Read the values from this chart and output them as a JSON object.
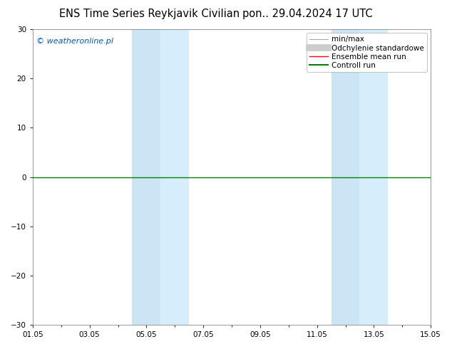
{
  "title_left": "ENS Time Series Reykjavik Civilian",
  "title_right": "pon.. 29.04.2024 17 UTC",
  "watermark": "© weatheronline.pl",
  "ylim": [
    -30,
    30
  ],
  "yticks": [
    -30,
    -20,
    -10,
    0,
    10,
    20,
    30
  ],
  "xtick_labels": [
    "01.05",
    "03.05",
    "05.05",
    "07.05",
    "09.05",
    "11.05",
    "13.05",
    "15.05"
  ],
  "xtick_positions": [
    0,
    2,
    4,
    6,
    8,
    10,
    12,
    14
  ],
  "shaded_bands": [
    {
      "xstart": 3.5,
      "xend": 4.5,
      "color": "#cce5f5"
    },
    {
      "xstart": 4.5,
      "xend": 5.5,
      "color": "#d6edfb"
    },
    {
      "xstart": 10.5,
      "xend": 11.5,
      "color": "#cce5f5"
    },
    {
      "xstart": 11.5,
      "xend": 12.5,
      "color": "#d6edfb"
    }
  ],
  "legend_items": [
    {
      "label": "min/max",
      "color": "#aaaaaa",
      "lw": 1.0,
      "linestyle": "-"
    },
    {
      "label": "Odchylenie standardowe",
      "color": "#cccccc",
      "lw": 5,
      "linestyle": "-"
    },
    {
      "label": "Ensemble mean run",
      "color": "#ff0000",
      "lw": 1.0,
      "linestyle": "-"
    },
    {
      "label": "Controll run",
      "color": "#008000",
      "lw": 1.5,
      "linestyle": "-"
    }
  ],
  "hline_y": 0,
  "hline_color": "#008000",
  "background_color": "#ffffff",
  "plot_bg_color": "#ffffff",
  "title_fontsize": 10.5,
  "tick_fontsize": 7.5,
  "legend_fontsize": 7.5,
  "watermark_color": "#0055cc",
  "watermark_fontsize": 8
}
